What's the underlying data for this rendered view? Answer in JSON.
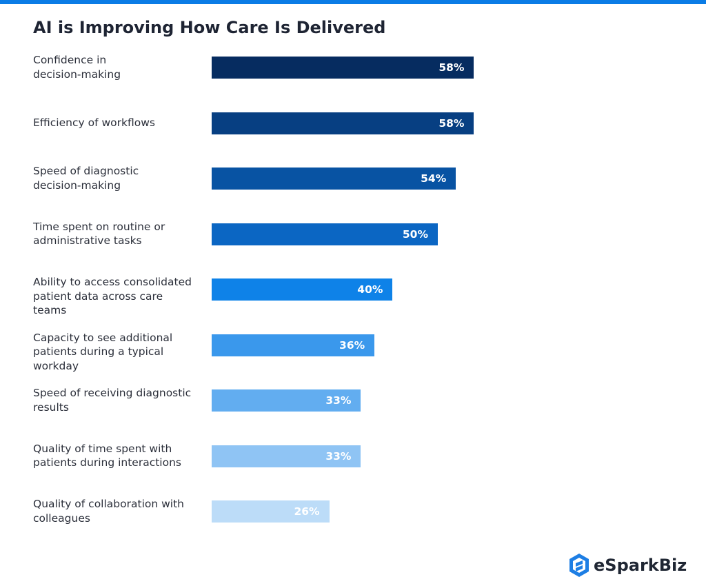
{
  "accent_color": "#0a7ce6",
  "logo": {
    "text": "eSparkBiz",
    "icon": "hexagon-logo-icon",
    "color": "#1d7ee4"
  },
  "chart_data": {
    "type": "bar",
    "orientation": "horizontal",
    "title": "AI is Improving How Care Is Delivered",
    "xlabel": "",
    "ylabel": "",
    "xlim": [
      0,
      100
    ],
    "grid": false,
    "categories": [
      "Confidence in decision-making",
      "Efficiency of workflows",
      "Speed of diagnostic decision-making",
      "Time spent on routine or administrative tasks",
      "Ability to access consolidated patient data across care teams",
      "Capacity to see additional patients during a typical workday",
      "Speed of receiving diagnostic results",
      "Quality of time spent with patients during interactions",
      "Quality of collaboration with colleagues"
    ],
    "values": [
      58,
      58,
      54,
      50,
      40,
      36,
      33,
      33,
      26
    ],
    "value_labels": [
      "58%",
      "58%",
      "54%",
      "50%",
      "40%",
      "36%",
      "33%",
      "33%",
      "26%"
    ],
    "colors": [
      "#062c60",
      "#073f82",
      "#0853a3",
      "#0b66c3",
      "#0e82e8",
      "#3a98ec",
      "#62adf0",
      "#8fc4f4",
      "#bcdcf8"
    ]
  }
}
